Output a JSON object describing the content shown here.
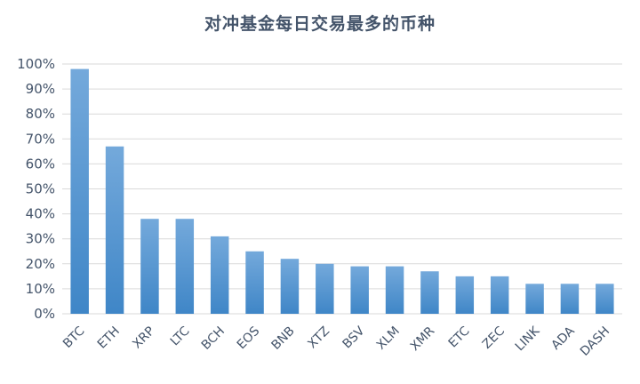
{
  "chart_data": {
    "type": "bar",
    "title": "对冲基金每日交易最多的币种",
    "xlabel": "",
    "ylabel": "",
    "categories": [
      "BTC",
      "ETH",
      "XRP",
      "LTC",
      "BCH",
      "EOS",
      "BNB",
      "XTZ",
      "BSV",
      "XLM",
      "XMR",
      "ETC",
      "ZEC",
      "LINK",
      "ADA",
      "DASH"
    ],
    "values": [
      98,
      67,
      38,
      38,
      31,
      25,
      22,
      20,
      19,
      19,
      17,
      15,
      15,
      12,
      12,
      12
    ],
    "yticks": [
      "0%",
      "10%",
      "20%",
      "30%",
      "40%",
      "50%",
      "60%",
      "70%",
      "80%",
      "90%",
      "100%"
    ],
    "ylim": [
      0,
      100
    ],
    "grid": true,
    "legend": "none",
    "colors": {
      "bar_top": "#74a9db",
      "bar_bottom": "#3f86c7",
      "grid": "#d9d9d9",
      "text": "#44546a"
    }
  }
}
